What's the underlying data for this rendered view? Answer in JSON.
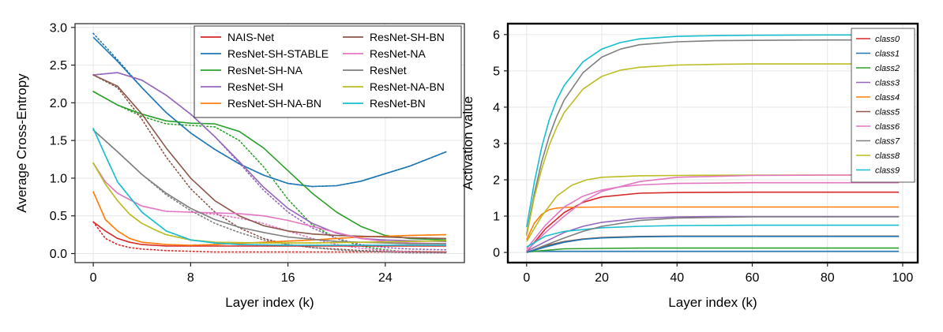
{
  "chart_data": [
    {
      "type": "line",
      "title": "",
      "xlabel": "Layer index (k)",
      "ylabel": "Average Cross-Entropy",
      "xlim": [
        -1.5,
        30.5
      ],
      "ylim": [
        -0.12,
        3.05
      ],
      "xticks": [
        0,
        8,
        16,
        24
      ],
      "yticks": [
        0.0,
        0.5,
        1.0,
        1.5,
        2.0,
        2.5,
        3.0
      ],
      "ytick_labels": [
        "0.0",
        "0.5",
        "1.0",
        "1.5",
        "2.0",
        "2.5",
        "3.0"
      ],
      "grid": true,
      "legend": {
        "location": "upper-right",
        "columns": 2
      },
      "series": [
        {
          "name": "NAIS-Net",
          "color": "#d62728",
          "x": [
            0,
            1,
            2,
            3,
            4,
            6,
            8,
            10,
            12,
            16,
            20,
            24,
            29
          ],
          "y": [
            0.42,
            0.3,
            0.2,
            0.15,
            0.12,
            0.1,
            0.1,
            0.1,
            0.1,
            0.1,
            0.1,
            0.1,
            0.1
          ],
          "dotted": [
            0.42,
            0.2,
            0.12,
            0.08,
            0.06,
            0.04,
            0.03,
            0.02,
            0.02,
            0.02,
            0.02,
            0.02,
            0.02
          ]
        },
        {
          "name": "ResNet-SH-STABLE",
          "color": "#1f77b4",
          "x": [
            0,
            2,
            4,
            6,
            8,
            10,
            12,
            14,
            16,
            18,
            20,
            22,
            24,
            26,
            29
          ],
          "y": [
            2.87,
            2.55,
            2.2,
            1.87,
            1.6,
            1.38,
            1.19,
            1.04,
            0.93,
            0.89,
            0.9,
            0.96,
            1.06,
            1.16,
            1.35
          ],
          "dotted": [
            2.92,
            2.57,
            2.2,
            1.87,
            1.6,
            1.38,
            1.19,
            1.04,
            0.93,
            0.89,
            0.9,
            0.96,
            1.06,
            1.16,
            1.35
          ]
        },
        {
          "name": "ResNet-SH-NA",
          "color": "#2ca02c",
          "x": [
            0,
            2,
            4,
            6,
            8,
            10,
            12,
            14,
            16,
            18,
            20,
            22,
            24,
            26,
            29
          ],
          "y": [
            2.15,
            1.97,
            1.85,
            1.76,
            1.73,
            1.72,
            1.62,
            1.4,
            1.1,
            0.8,
            0.55,
            0.36,
            0.24,
            0.2,
            0.18
          ],
          "dotted": [
            2.15,
            1.97,
            1.82,
            1.72,
            1.7,
            1.68,
            1.5,
            1.15,
            0.72,
            0.38,
            0.2,
            0.1,
            0.05,
            0.02,
            0.01
          ]
        },
        {
          "name": "ResNet-SH",
          "color": "#9467bd",
          "x": [
            0,
            2,
            4,
            6,
            8,
            10,
            12,
            14,
            16,
            18,
            20,
            22,
            24,
            26,
            29
          ],
          "y": [
            2.37,
            2.4,
            2.3,
            2.1,
            1.85,
            1.55,
            1.22,
            0.88,
            0.6,
            0.4,
            0.27,
            0.2,
            0.18,
            0.17,
            0.16
          ],
          "dotted": [
            2.37,
            2.4,
            2.3,
            2.1,
            1.85,
            1.55,
            1.2,
            0.84,
            0.55,
            0.34,
            0.2,
            0.12,
            0.08,
            0.06,
            0.05
          ]
        },
        {
          "name": "ResNet-SH-NA-BN",
          "color": "#ff7f0e",
          "x": [
            0,
            1,
            2,
            3,
            4,
            6,
            8,
            10,
            14,
            18,
            22,
            26,
            29
          ],
          "y": [
            0.82,
            0.45,
            0.3,
            0.2,
            0.15,
            0.12,
            0.11,
            0.12,
            0.15,
            0.18,
            0.22,
            0.24,
            0.25
          ],
          "dotted": [
            0.82,
            0.45,
            0.3,
            0.2,
            0.15,
            0.12,
            0.11,
            0.12,
            0.15,
            0.18,
            0.22,
            0.24,
            0.25
          ]
        },
        {
          "name": "ResNet-SH-BN",
          "color": "#8c564b",
          "x": [
            0,
            2,
            4,
            6,
            8,
            10,
            12,
            14,
            16,
            18,
            20,
            22,
            24,
            26,
            29
          ],
          "y": [
            2.37,
            2.22,
            1.85,
            1.4,
            1.0,
            0.7,
            0.5,
            0.37,
            0.3,
            0.26,
            0.24,
            0.23,
            0.22,
            0.21,
            0.2
          ],
          "dotted": [
            2.37,
            2.2,
            1.78,
            1.28,
            0.86,
            0.55,
            0.34,
            0.2,
            0.12,
            0.08,
            0.06,
            0.04,
            0.03,
            0.03,
            0.02
          ]
        },
        {
          "name": "ResNet-NA",
          "color": "#e377c2",
          "x": [
            0,
            1,
            2,
            4,
            6,
            8,
            10,
            12,
            14,
            16,
            18,
            20,
            22,
            24,
            26,
            29
          ],
          "y": [
            1.2,
            0.95,
            0.8,
            0.63,
            0.56,
            0.55,
            0.54,
            0.53,
            0.5,
            0.44,
            0.36,
            0.28,
            0.2,
            0.16,
            0.14,
            0.13
          ],
          "dotted": [
            1.2,
            0.95,
            0.8,
            0.63,
            0.56,
            0.55,
            0.52,
            0.47,
            0.4,
            0.3,
            0.2,
            0.12,
            0.07,
            0.04,
            0.02,
            0.01
          ]
        },
        {
          "name": "ResNet",
          "color": "#7f7f7f",
          "x": [
            0,
            2,
            4,
            6,
            8,
            10,
            12,
            14,
            16,
            18,
            20,
            22,
            24,
            26,
            29
          ],
          "y": [
            1.64,
            1.35,
            1.05,
            0.8,
            0.6,
            0.45,
            0.35,
            0.28,
            0.22,
            0.19,
            0.16,
            0.15,
            0.14,
            0.13,
            0.13
          ],
          "dotted": [
            1.64,
            1.35,
            1.05,
            0.78,
            0.57,
            0.4,
            0.28,
            0.18,
            0.12,
            0.08,
            0.05,
            0.03,
            0.02,
            0.01,
            0.01
          ]
        },
        {
          "name": "ResNet-NA-BN",
          "color": "#bcbd22",
          "x": [
            0,
            1,
            2,
            3,
            4,
            5,
            6,
            8,
            10,
            14,
            18,
            22,
            26,
            29
          ],
          "y": [
            1.2,
            0.92,
            0.7,
            0.52,
            0.4,
            0.32,
            0.25,
            0.18,
            0.15,
            0.14,
            0.14,
            0.15,
            0.16,
            0.17
          ],
          "dotted": [
            1.2,
            0.92,
            0.7,
            0.52,
            0.4,
            0.32,
            0.25,
            0.18,
            0.15,
            0.14,
            0.14,
            0.15,
            0.16,
            0.17
          ]
        },
        {
          "name": "ResNet-BN",
          "color": "#17becf",
          "x": [
            0,
            1,
            2,
            4,
            6,
            8,
            10,
            12,
            16,
            20,
            24,
            29
          ],
          "y": [
            1.66,
            1.3,
            0.95,
            0.55,
            0.3,
            0.18,
            0.14,
            0.12,
            0.11,
            0.11,
            0.11,
            0.11
          ],
          "dotted": [
            1.66,
            1.3,
            0.95,
            0.55,
            0.3,
            0.18,
            0.14,
            0.12,
            0.11,
            0.11,
            0.11,
            0.11
          ]
        }
      ]
    },
    {
      "type": "line",
      "title": "",
      "xlabel": "Layer index (k)",
      "ylabel": "Activation value",
      "xlim": [
        -5,
        104
      ],
      "ylim": [
        -0.28,
        6.3
      ],
      "xticks": [
        0,
        20,
        40,
        60,
        80,
        100
      ],
      "yticks": [
        0,
        1,
        2,
        3,
        4,
        5,
        6
      ],
      "grid": true,
      "legend": {
        "location": "upper-right",
        "columns": 1
      },
      "series": [
        {
          "name": "class0",
          "color": "#d62728",
          "x": [
            0,
            5,
            10,
            15,
            20,
            30,
            40,
            60,
            80,
            99
          ],
          "y": [
            0.02,
            0.65,
            1.1,
            1.38,
            1.53,
            1.63,
            1.65,
            1.66,
            1.66,
            1.66
          ]
        },
        {
          "name": "class1",
          "color": "#1f77b4",
          "x": [
            0,
            10,
            20,
            40,
            60,
            80,
            99
          ],
          "y": [
            0.03,
            0.03,
            0.03,
            0.03,
            0.03,
            0.03,
            0.03
          ]
        },
        {
          "name": "class2",
          "color": "#2ca02c",
          "x": [
            0,
            10,
            20,
            30,
            40,
            60,
            80,
            99
          ],
          "y": [
            0.01,
            0.1,
            0.11,
            0.12,
            0.12,
            0.12,
            0.12,
            0.12
          ]
        },
        {
          "name": "class3",
          "color": "#9467bd",
          "x": [
            0,
            5,
            10,
            15,
            20,
            30,
            40,
            50,
            60,
            80,
            99
          ],
          "y": [
            0.03,
            0.3,
            0.55,
            0.72,
            0.83,
            0.94,
            0.98,
            0.99,
            0.99,
            0.99,
            0.99
          ]
        },
        {
          "name": "class4",
          "color": "#ff7f0e",
          "x": [
            0,
            2,
            4,
            6,
            8,
            10,
            20,
            40,
            60,
            80,
            99
          ],
          "y": [
            0.35,
            0.8,
            1.05,
            1.18,
            1.22,
            1.24,
            1.25,
            1.25,
            1.25,
            1.25,
            1.25
          ]
        },
        {
          "name": "class5",
          "color": "#8c564b",
          "x": [
            0,
            5,
            10,
            15,
            20,
            30,
            40,
            60,
            80,
            99
          ],
          "y": [
            0.0,
            0.18,
            0.3,
            0.37,
            0.41,
            0.44,
            0.45,
            0.45,
            0.45,
            0.45
          ]
        },
        {
          "name": "class6",
          "color": "#e377c2",
          "x": [
            0,
            5,
            10,
            15,
            20,
            25,
            30,
            40,
            60,
            80,
            99
          ],
          "y": [
            0.1,
            0.75,
            1.25,
            1.55,
            1.72,
            1.81,
            1.86,
            1.9,
            1.92,
            1.92,
            1.92
          ]
        },
        {
          "name": "class7",
          "color": "#7f7f7f",
          "x": [
            0,
            2,
            4,
            6,
            8,
            10,
            15,
            20,
            25,
            30,
            40,
            50,
            60,
            80,
            99
          ],
          "y": [
            0.5,
            1.6,
            2.5,
            3.2,
            3.75,
            4.2,
            4.95,
            5.38,
            5.6,
            5.72,
            5.8,
            5.83,
            5.84,
            5.85,
            5.85
          ]
        },
        {
          "name": "class8",
          "color": "#bcbd22",
          "x": [
            0,
            2,
            4,
            6,
            8,
            10,
            15,
            20,
            25,
            30,
            40,
            50,
            60,
            80,
            99
          ],
          "y": [
            0.45,
            1.5,
            2.3,
            2.95,
            3.45,
            3.85,
            4.5,
            4.85,
            5.02,
            5.1,
            5.16,
            5.18,
            5.19,
            5.19,
            5.19
          ]
        },
        {
          "name": "class9",
          "color": "#17becf",
          "x": [
            0,
            2,
            4,
            6,
            8,
            10,
            15,
            20,
            25,
            30,
            40,
            50,
            60,
            80,
            99
          ],
          "y": [
            0.7,
            1.9,
            2.9,
            3.65,
            4.2,
            4.6,
            5.25,
            5.6,
            5.78,
            5.88,
            5.95,
            5.97,
            5.98,
            5.99,
            5.99
          ]
        },
        {
          "name": "",
          "color": "#bcbd22",
          "x": [
            0,
            4,
            8,
            12,
            16,
            20,
            30,
            40,
            60,
            80,
            99
          ],
          "y": [
            0.3,
            1.0,
            1.55,
            1.85,
            2.0,
            2.07,
            2.11,
            2.12,
            2.13,
            2.13,
            2.13
          ]
        },
        {
          "name": "",
          "color": "#e377c2",
          "x": [
            0,
            5,
            10,
            15,
            20,
            30,
            40,
            60,
            80,
            99
          ],
          "y": [
            0.05,
            0.55,
            1.0,
            1.4,
            1.68,
            1.95,
            2.07,
            2.12,
            2.13,
            2.13
          ]
        },
        {
          "name": "",
          "color": "#17becf",
          "x": [
            0,
            5,
            10,
            20,
            30,
            40,
            60,
            80,
            99
          ],
          "y": [
            0.15,
            0.45,
            0.58,
            0.68,
            0.72,
            0.74,
            0.75,
            0.75,
            0.75
          ]
        },
        {
          "name": "",
          "color": "#7f7f7f",
          "x": [
            0,
            5,
            10,
            15,
            20,
            30,
            40,
            60,
            80,
            99
          ],
          "y": [
            0.0,
            0.2,
            0.4,
            0.58,
            0.72,
            0.88,
            0.95,
            0.98,
            0.98,
            0.98
          ]
        },
        {
          "name": "",
          "color": "#1f77b4",
          "x": [
            0,
            5,
            10,
            15,
            20,
            30,
            40,
            60,
            80,
            99
          ],
          "y": [
            0.0,
            0.15,
            0.28,
            0.36,
            0.4,
            0.43,
            0.44,
            0.44,
            0.44,
            0.44
          ]
        }
      ]
    }
  ]
}
